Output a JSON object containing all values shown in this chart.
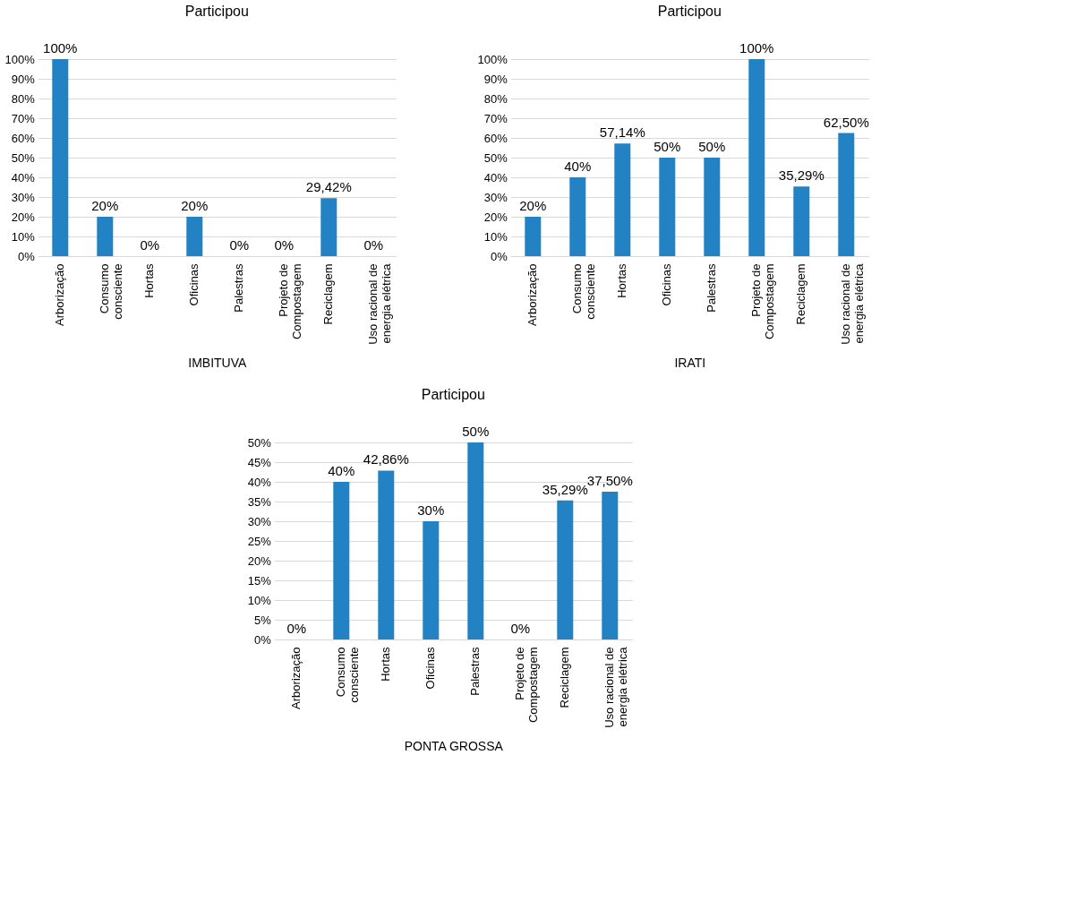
{
  "chart_data": [
    {
      "type": "bar",
      "title": "Participou",
      "xlabel": "IMBITUVA",
      "color": "#2382c4",
      "grid": "y",
      "categories": [
        "Arborização",
        "Consumo consciente",
        "Hortas",
        "Oficinas",
        "Palestras",
        "Projeto de Compostagem",
        "Reciclagem",
        "Uso racional de energia elétrica"
      ],
      "values": [
        100,
        20,
        0,
        20,
        0,
        0,
        29.42,
        0
      ],
      "value_labels": [
        "100%",
        "20%",
        "0%",
        "20%",
        "0%",
        "0%",
        "29,42%",
        "0%"
      ],
      "ylim": [
        0,
        100
      ],
      "yticks": [
        {
          "value": 0,
          "label": "0%"
        },
        {
          "value": 10,
          "label": "10%"
        },
        {
          "value": 20,
          "label": "20%"
        },
        {
          "value": 30,
          "label": "30%"
        },
        {
          "value": 40,
          "label": "40%"
        },
        {
          "value": 50,
          "label": "50%"
        },
        {
          "value": 60,
          "label": "60%"
        },
        {
          "value": 70,
          "label": "70%"
        },
        {
          "value": 80,
          "label": "80%"
        },
        {
          "value": 90,
          "label": "90%"
        },
        {
          "value": 100,
          "label": "100%"
        }
      ]
    },
    {
      "type": "bar",
      "title": "Participou",
      "xlabel": "IRATI",
      "color": "#2382c4",
      "grid": "y",
      "categories": [
        "Arborização",
        "Consumo consciente",
        "Hortas",
        "Oficinas",
        "Palestras",
        "Projeto de Compostagem",
        "Reciclagem",
        "Uso racional de energia elétrica"
      ],
      "values": [
        20,
        40,
        57.14,
        50,
        50,
        100,
        35.29,
        62.5
      ],
      "value_labels": [
        "20%",
        "40%",
        "57,14%",
        "50%",
        "50%",
        "100%",
        "35,29%",
        "62,50%"
      ],
      "ylim": [
        0,
        100
      ],
      "yticks": [
        {
          "value": 0,
          "label": "0%"
        },
        {
          "value": 10,
          "label": "10%"
        },
        {
          "value": 20,
          "label": "20%"
        },
        {
          "value": 30,
          "label": "30%"
        },
        {
          "value": 40,
          "label": "40%"
        },
        {
          "value": 50,
          "label": "50%"
        },
        {
          "value": 60,
          "label": "60%"
        },
        {
          "value": 70,
          "label": "70%"
        },
        {
          "value": 80,
          "label": "80%"
        },
        {
          "value": 90,
          "label": "90%"
        },
        {
          "value": 100,
          "label": "100%"
        }
      ]
    },
    {
      "type": "bar",
      "title": "Participou",
      "xlabel": "PONTA GROSSA",
      "color": "#2382c4",
      "grid": "y",
      "categories": [
        "Arborização",
        "Consumo consciente",
        "Hortas",
        "Oficinas",
        "Palestras",
        "Projeto de Compostagem",
        "Reciclagem",
        "Uso racional de energia elétrica"
      ],
      "values": [
        0,
        40,
        42.86,
        30,
        50,
        0,
        35.29,
        37.5
      ],
      "value_labels": [
        "0%",
        "40%",
        "42,86%",
        "30%",
        "50%",
        "0%",
        "35,29%",
        "37,50%"
      ],
      "ylim": [
        0,
        50
      ],
      "yticks": [
        {
          "value": 0,
          "label": "0%"
        },
        {
          "value": 5,
          "label": "5%"
        },
        {
          "value": 10,
          "label": "10%"
        },
        {
          "value": 15,
          "label": "15%"
        },
        {
          "value": 20,
          "label": "20%"
        },
        {
          "value": 25,
          "label": "25%"
        },
        {
          "value": 30,
          "label": "30%"
        },
        {
          "value": 35,
          "label": "35%"
        },
        {
          "value": 40,
          "label": "40%"
        },
        {
          "value": 45,
          "label": "45%"
        },
        {
          "value": 50,
          "label": "50%"
        }
      ]
    }
  ]
}
